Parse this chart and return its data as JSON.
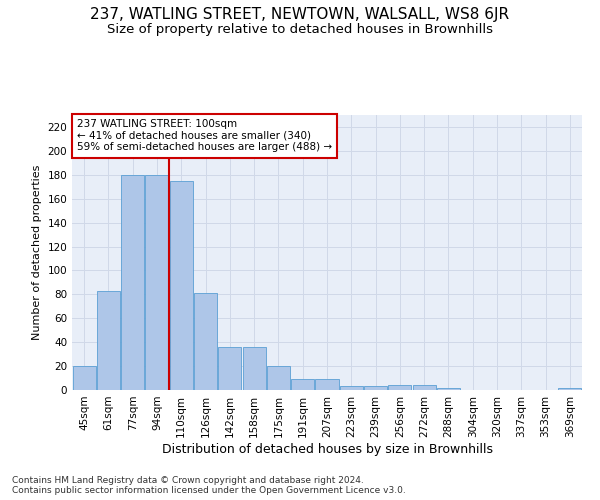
{
  "title": "237, WATLING STREET, NEWTOWN, WALSALL, WS8 6JR",
  "subtitle": "Size of property relative to detached houses in Brownhills",
  "xlabel": "Distribution of detached houses by size in Brownhills",
  "ylabel": "Number of detached properties",
  "bar_labels": [
    "45sqm",
    "61sqm",
    "77sqm",
    "94sqm",
    "110sqm",
    "126sqm",
    "142sqm",
    "158sqm",
    "175sqm",
    "191sqm",
    "207sqm",
    "223sqm",
    "239sqm",
    "256sqm",
    "272sqm",
    "288sqm",
    "304sqm",
    "320sqm",
    "337sqm",
    "353sqm",
    "369sqm"
  ],
  "bar_values": [
    20,
    83,
    180,
    180,
    175,
    81,
    36,
    36,
    20,
    9,
    9,
    3,
    3,
    4,
    4,
    2,
    0,
    0,
    0,
    0,
    2
  ],
  "bar_color": "#aec6e8",
  "bar_edge_color": "#5a9fd4",
  "vline_x": 3.5,
  "vline_color": "#cc0000",
  "annotation_text": "237 WATLING STREET: 100sqm\n← 41% of detached houses are smaller (340)\n59% of semi-detached houses are larger (488) →",
  "annotation_box_color": "#ffffff",
  "annotation_box_edge": "#cc0000",
  "ylim": [
    0,
    230
  ],
  "yticks": [
    0,
    20,
    40,
    60,
    80,
    100,
    120,
    140,
    160,
    180,
    200,
    220
  ],
  "grid_color": "#d0d8e8",
  "bg_color": "#e8eef8",
  "footer": "Contains HM Land Registry data © Crown copyright and database right 2024.\nContains public sector information licensed under the Open Government Licence v3.0.",
  "title_fontsize": 11,
  "subtitle_fontsize": 9.5,
  "xlabel_fontsize": 9,
  "ylabel_fontsize": 8,
  "tick_fontsize": 7.5,
  "annotation_fontsize": 7.5,
  "footer_fontsize": 6.5
}
